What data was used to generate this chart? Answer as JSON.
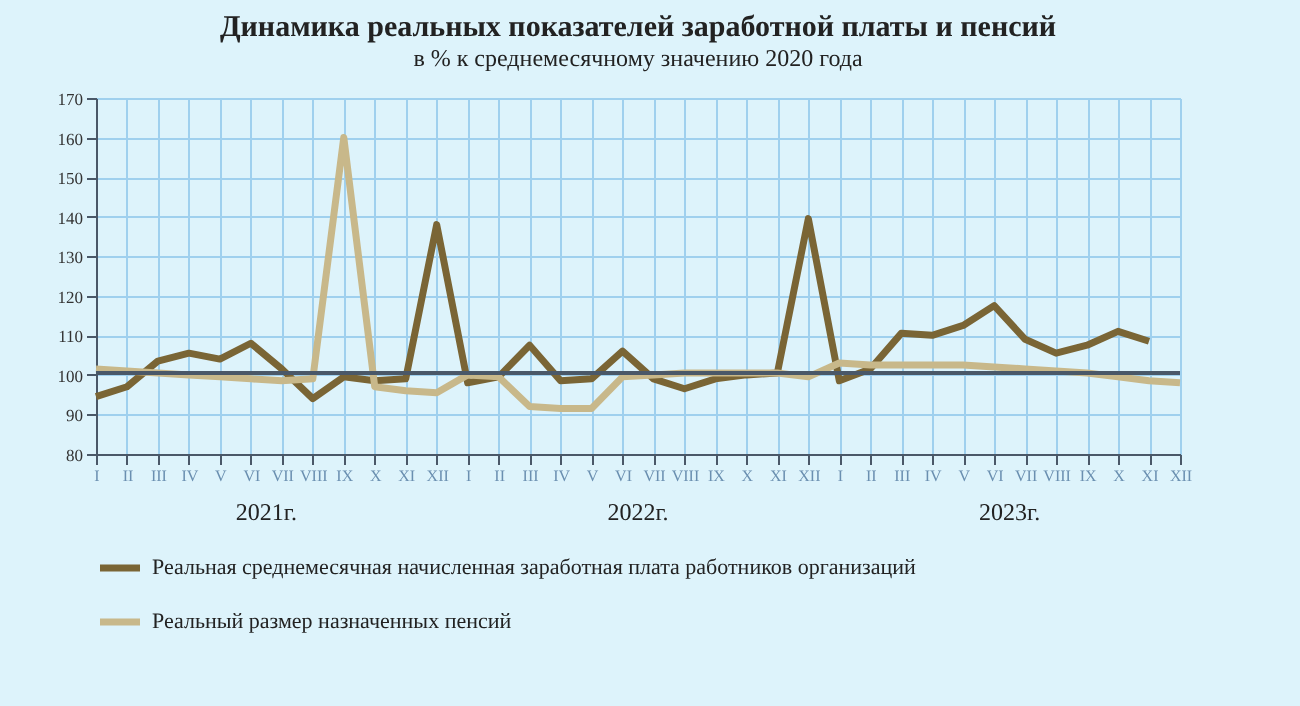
{
  "chart_data": {
    "type": "line",
    "title": "Динамика реальных показателей заработной платы и пенсий",
    "subtitle": "в % к среднемесячному значению 2020 года",
    "categories": [
      "I",
      "II",
      "III",
      "IV",
      "V",
      "VI",
      "VII",
      "VIII",
      "IX",
      "X",
      "XI",
      "XII",
      "I",
      "II",
      "III",
      "IV",
      "V",
      "VI",
      "VII",
      "VIII",
      "IX",
      "X",
      "XI",
      "XII",
      "I",
      "II",
      "III",
      "IV",
      "V",
      "VI",
      "VII",
      "VIII",
      "IX",
      "X",
      "XI",
      "XII"
    ],
    "series": [
      {
        "name": "Реальная среднемесячная  начисленная  заработная  плата работников  организаций",
        "color": "#7a6535",
        "values": [
          94.5,
          97,
          103.5,
          105.5,
          104,
          108,
          101.5,
          94,
          99.5,
          98.5,
          99,
          138,
          98,
          99.5,
          107.5,
          98.5,
          99,
          106,
          99,
          96.5,
          99,
          100,
          100.5,
          139.5,
          98.5,
          101.5,
          110.5,
          110,
          112.5,
          117.5,
          109,
          105.5,
          107.5,
          111,
          108.5,
          null
        ]
      },
      {
        "name": "Реальный размер назначенных  пенсий",
        "color": "#c8b88a",
        "values": [
          101.5,
          101,
          100.5,
          100,
          99.5,
          99,
          98.5,
          99,
          160,
          97,
          96,
          95.5,
          100,
          99.5,
          92,
          91.5,
          91.5,
          99.5,
          100,
          100.5,
          100.5,
          100.5,
          100.5,
          99.5,
          103,
          102.5,
          102.5,
          102.5,
          102.5,
          102,
          101.5,
          101,
          100.5,
          99.5,
          98.5,
          98
        ]
      }
    ],
    "ylim": [
      80,
      170
    ],
    "yticks": [
      80,
      90,
      100,
      110,
      120,
      130,
      140,
      150,
      160,
      170
    ],
    "grid": true,
    "legend": "bottom",
    "line_style": "solid",
    "marker": "none",
    "ref_lines": [
      {
        "axis": "y",
        "value": 100.5,
        "color": "#4a5868"
      }
    ],
    "annotations": [
      "2021г.",
      "2022г.",
      "2023г."
    ]
  }
}
